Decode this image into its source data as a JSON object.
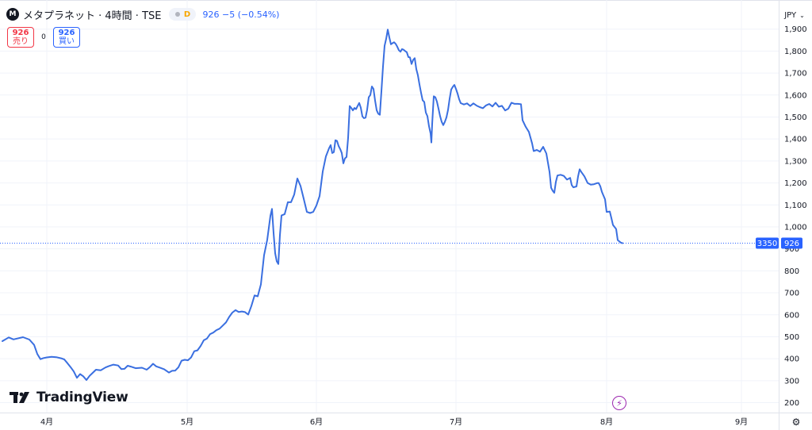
{
  "header": {
    "logo_letter": "M",
    "symbol_title": "メタプラネット · 4時間 · TSE",
    "status_letter": "D",
    "ohlc_text": "926  −5 (−0.54%)"
  },
  "trade": {
    "sell_price": "926",
    "sell_label": "売り",
    "spread": "0",
    "buy_price": "926",
    "buy_label": "買い"
  },
  "currency": {
    "label": "JPY"
  },
  "branding": {
    "logo_text": "TradingView"
  },
  "price_tags": {
    "countdown": "3350",
    "last": "926"
  },
  "colors": {
    "line": "#3a6fe0",
    "last_price_tag": "#2962ff",
    "sell": "#f23645",
    "buy": "#2962ff",
    "grid": "#f0f3fa"
  },
  "icons": {
    "bolt": "lightning-icon",
    "settings": "gear-icon",
    "chevron": "chevron-down-icon"
  },
  "chart_data": {
    "type": "line",
    "series": [
      {
        "points": [
          [
            0,
            480
          ],
          [
            8,
            497
          ],
          [
            14,
            488
          ],
          [
            26,
            498
          ],
          [
            34,
            487
          ],
          [
            40,
            463
          ],
          [
            44,
            422
          ],
          [
            48,
            398
          ],
          [
            52,
            403
          ],
          [
            56,
            406
          ],
          [
            62,
            409
          ],
          [
            68,
            407
          ],
          [
            74,
            402
          ],
          [
            78,
            397
          ],
          [
            82,
            380
          ],
          [
            86,
            362
          ],
          [
            90,
            342
          ],
          [
            94,
            313
          ],
          [
            98,
            330
          ],
          [
            102,
            320
          ],
          [
            106,
            303
          ],
          [
            110,
            322
          ],
          [
            114,
            336
          ],
          [
            118,
            350
          ],
          [
            124,
            347
          ],
          [
            130,
            360
          ],
          [
            134,
            366
          ],
          [
            140,
            373
          ],
          [
            146,
            369
          ],
          [
            150,
            353
          ],
          [
            154,
            354
          ],
          [
            158,
            368
          ],
          [
            162,
            364
          ],
          [
            168,
            357
          ],
          [
            176,
            359
          ],
          [
            182,
            350
          ],
          [
            186,
            362
          ],
          [
            190,
            377
          ],
          [
            194,
            365
          ],
          [
            198,
            360
          ],
          [
            204,
            352
          ],
          [
            210,
            337
          ],
          [
            214,
            345
          ],
          [
            218,
            346
          ],
          [
            222,
            361
          ],
          [
            226,
            391
          ],
          [
            230,
            395
          ],
          [
            234,
            393
          ],
          [
            238,
            406
          ],
          [
            242,
            434
          ],
          [
            246,
            438
          ],
          [
            250,
            458
          ],
          [
            254,
            484
          ],
          [
            258,
            492
          ],
          [
            262,
            512
          ],
          [
            266,
            519
          ],
          [
            270,
            530
          ],
          [
            274,
            537
          ],
          [
            278,
            551
          ],
          [
            282,
            565
          ],
          [
            286,
            590
          ],
          [
            290,
            610
          ],
          [
            294,
            621
          ],
          [
            298,
            613
          ],
          [
            302,
            615
          ],
          [
            306,
            612
          ],
          [
            310,
            601
          ],
          [
            314,
            640
          ],
          [
            318,
            688
          ],
          [
            322,
            684
          ],
          [
            326,
            738
          ],
          [
            330,
            871
          ],
          [
            334,
            941
          ],
          [
            338,
            1050
          ],
          [
            340,
            1082
          ],
          [
            342,
            972
          ],
          [
            344,
            880
          ],
          [
            346,
            843
          ],
          [
            348,
            831
          ],
          [
            350,
            962
          ],
          [
            352,
            1052
          ],
          [
            356,
            1058
          ],
          [
            360,
            1112
          ],
          [
            364,
            1112
          ],
          [
            368,
            1147
          ],
          [
            372,
            1220
          ],
          [
            376,
            1186
          ],
          [
            380,
            1128
          ],
          [
            384,
            1068
          ],
          [
            388,
            1063
          ],
          [
            392,
            1068
          ],
          [
            396,
            1097
          ],
          [
            400,
            1140
          ],
          [
            404,
            1252
          ],
          [
            408,
            1321
          ],
          [
            412,
            1358
          ],
          [
            414,
            1372
          ],
          [
            416,
            1336
          ],
          [
            418,
            1340
          ],
          [
            420,
            1394
          ],
          [
            422,
            1391
          ],
          [
            424,
            1368
          ],
          [
            426,
            1354
          ],
          [
            428,
            1336
          ],
          [
            430,
            1289
          ],
          [
            432,
            1312
          ],
          [
            434,
            1318
          ],
          [
            436,
            1405
          ],
          [
            438,
            1550
          ],
          [
            440,
            1541
          ],
          [
            442,
            1530
          ],
          [
            444,
            1541
          ],
          [
            446,
            1536
          ],
          [
            448,
            1550
          ],
          [
            450,
            1564
          ],
          [
            452,
            1542
          ],
          [
            454,
            1503
          ],
          [
            456,
            1495
          ],
          [
            458,
            1497
          ],
          [
            460,
            1533
          ],
          [
            462,
            1590
          ],
          [
            464,
            1600
          ],
          [
            466,
            1639
          ],
          [
            468,
            1628
          ],
          [
            470,
            1575
          ],
          [
            472,
            1531
          ],
          [
            474,
            1515
          ],
          [
            476,
            1510
          ],
          [
            478,
            1617
          ],
          [
            480,
            1730
          ],
          [
            482,
            1824
          ],
          [
            484,
            1856
          ],
          [
            486,
            1898
          ],
          [
            488,
            1862
          ],
          [
            490,
            1831
          ],
          [
            492,
            1836
          ],
          [
            494,
            1840
          ],
          [
            496,
            1833
          ],
          [
            498,
            1820
          ],
          [
            500,
            1804
          ],
          [
            502,
            1797
          ],
          [
            504,
            1809
          ],
          [
            506,
            1806
          ],
          [
            508,
            1800
          ],
          [
            510,
            1795
          ],
          [
            512,
            1773
          ],
          [
            514,
            1771
          ],
          [
            516,
            1741
          ],
          [
            518,
            1760
          ],
          [
            520,
            1768
          ],
          [
            522,
            1718
          ],
          [
            524,
            1690
          ],
          [
            526,
            1648
          ],
          [
            528,
            1610
          ],
          [
            530,
            1576
          ],
          [
            532,
            1569
          ],
          [
            534,
            1520
          ],
          [
            536,
            1504
          ],
          [
            538,
            1458
          ],
          [
            540,
            1425
          ],
          [
            541,
            1384
          ],
          [
            542,
            1468
          ],
          [
            544,
            1594
          ],
          [
            546,
            1590
          ],
          [
            548,
            1570
          ],
          [
            550,
            1538
          ],
          [
            552,
            1504
          ],
          [
            554,
            1478
          ],
          [
            556,
            1463
          ],
          [
            558,
            1478
          ],
          [
            560,
            1498
          ],
          [
            562,
            1532
          ],
          [
            564,
            1583
          ],
          [
            566,
            1625
          ],
          [
            568,
            1637
          ],
          [
            570,
            1646
          ],
          [
            572,
            1628
          ],
          [
            574,
            1607
          ],
          [
            576,
            1581
          ],
          [
            578,
            1563
          ],
          [
            582,
            1557
          ],
          [
            586,
            1562
          ],
          [
            590,
            1550
          ],
          [
            594,
            1562
          ],
          [
            598,
            1552
          ],
          [
            602,
            1545
          ],
          [
            606,
            1540
          ],
          [
            610,
            1553
          ],
          [
            614,
            1559
          ],
          [
            618,
            1548
          ],
          [
            622,
            1565
          ],
          [
            626,
            1547
          ],
          [
            630,
            1551
          ],
          [
            634,
            1530
          ],
          [
            638,
            1538
          ],
          [
            642,
            1565
          ],
          [
            646,
            1560
          ],
          [
            650,
            1560
          ],
          [
            654,
            1558
          ],
          [
            656,
            1485
          ],
          [
            660,
            1455
          ],
          [
            664,
            1432
          ],
          [
            668,
            1380
          ],
          [
            670,
            1345
          ],
          [
            674,
            1350
          ],
          [
            678,
            1342
          ],
          [
            682,
            1364
          ],
          [
            686,
            1334
          ],
          [
            690,
            1250
          ],
          [
            692,
            1178
          ],
          [
            694,
            1164
          ],
          [
            696,
            1155
          ],
          [
            698,
            1205
          ],
          [
            700,
            1234
          ],
          [
            704,
            1237
          ],
          [
            708,
            1232
          ],
          [
            712,
            1215
          ],
          [
            716,
            1223
          ],
          [
            718,
            1190
          ],
          [
            720,
            1180
          ],
          [
            724,
            1184
          ],
          [
            726,
            1230
          ],
          [
            728,
            1262
          ],
          [
            730,
            1250
          ],
          [
            734,
            1230
          ],
          [
            738,
            1200
          ],
          [
            742,
            1192
          ],
          [
            746,
            1194
          ],
          [
            750,
            1199
          ],
          [
            752,
            1199
          ],
          [
            754,
            1185
          ],
          [
            756,
            1160
          ],
          [
            760,
            1125
          ],
          [
            762,
            1068
          ],
          [
            766,
            1070
          ],
          [
            768,
            1040
          ],
          [
            770,
            1009
          ],
          [
            774,
            990
          ],
          [
            776,
            940
          ],
          [
            780,
            928
          ],
          [
            782,
            926
          ]
        ]
      }
    ],
    "y_ticks": [
      200,
      300,
      400,
      500,
      600,
      700,
      800,
      900,
      1000,
      1100,
      1200,
      1300,
      1400,
      1500,
      1600,
      1700,
      1800,
      1900
    ],
    "y_tick_labels": [
      "200",
      "300",
      "400",
      "500",
      "600",
      "700",
      "800",
      "900",
      "1,000",
      "1,100",
      "1,200",
      "1,300",
      "1,400",
      "1,500",
      "1,600",
      "1,700",
      "1,800",
      "1,900"
    ],
    "x_ticks": [
      56,
      233,
      396,
      572,
      762,
      932
    ],
    "x_tick_labels": [
      "4月",
      "5月",
      "6月",
      "7月",
      "8月",
      "9月"
    ],
    "ylim": [
      155,
      2000
    ],
    "last_value": 926,
    "grid": true
  }
}
